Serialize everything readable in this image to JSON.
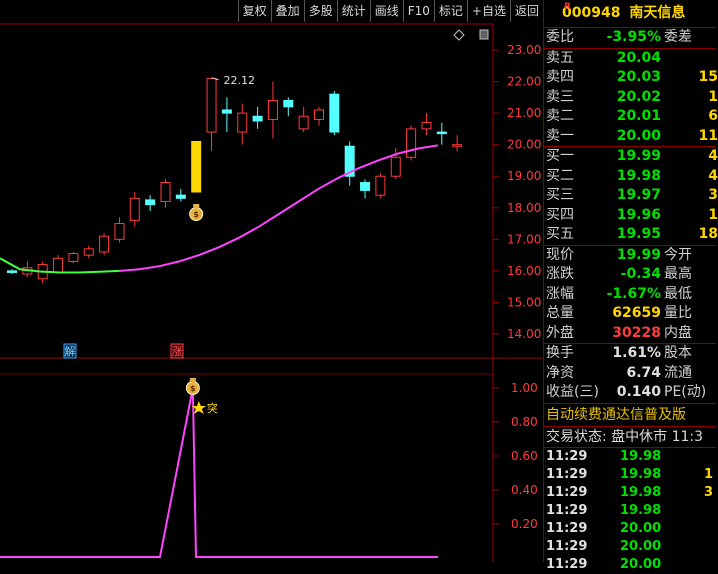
{
  "toolbar": [
    "复权",
    "叠加",
    "多股",
    "统计",
    "画线",
    "F10",
    "标记",
    "+自选",
    "返回"
  ],
  "main_chart": {
    "y_labels": [
      "23.00",
      "22.00",
      "21.00",
      "20.00",
      "19.00",
      "18.00",
      "17.00",
      "16.00",
      "15.00",
      "14.00"
    ],
    "high_annotation": "22.12",
    "markers": [
      "解",
      "涨"
    ],
    "candles": [
      {
        "o": 16.0,
        "c": 15.95,
        "h": 16.05,
        "l": 15.9
      },
      {
        "o": 15.9,
        "c": 16.1,
        "h": 16.3,
        "l": 15.8
      },
      {
        "o": 15.75,
        "c": 16.2,
        "h": 16.3,
        "l": 15.6
      },
      {
        "o": 15.95,
        "c": 16.4,
        "h": 16.5,
        "l": 15.9
      },
      {
        "o": 16.3,
        "c": 16.55,
        "h": 16.6,
        "l": 16.25
      },
      {
        "o": 16.5,
        "c": 16.7,
        "h": 16.8,
        "l": 16.4
      },
      {
        "o": 16.6,
        "c": 17.1,
        "h": 17.2,
        "l": 16.5
      },
      {
        "o": 17.0,
        "c": 17.5,
        "h": 17.7,
        "l": 16.9
      },
      {
        "o": 17.6,
        "c": 18.3,
        "h": 18.5,
        "l": 17.4
      },
      {
        "o": 18.25,
        "c": 18.1,
        "h": 18.4,
        "l": 17.9
      },
      {
        "o": 18.2,
        "c": 18.8,
        "h": 18.9,
        "l": 18.0
      },
      {
        "o": 18.4,
        "c": 18.3,
        "h": 18.6,
        "l": 18.2
      },
      {
        "o": 18.5,
        "c": 20.1,
        "h": 20.1,
        "l": 18.5
      },
      {
        "o": 20.4,
        "c": 22.1,
        "h": 22.12,
        "l": 19.8
      },
      {
        "o": 21.1,
        "c": 21.0,
        "h": 21.5,
        "l": 20.4
      },
      {
        "o": 20.4,
        "c": 21.0,
        "h": 21.3,
        "l": 20.0
      },
      {
        "o": 20.9,
        "c": 20.75,
        "h": 21.2,
        "l": 20.5
      },
      {
        "o": 20.8,
        "c": 21.4,
        "h": 22.0,
        "l": 20.2
      },
      {
        "o": 21.4,
        "c": 21.2,
        "h": 21.5,
        "l": 20.9
      },
      {
        "o": 20.5,
        "c": 20.9,
        "h": 21.2,
        "l": 20.4
      },
      {
        "o": 20.8,
        "c": 21.1,
        "h": 21.2,
        "l": 20.6
      },
      {
        "o": 21.6,
        "c": 20.4,
        "h": 21.7,
        "l": 20.3
      },
      {
        "o": 19.95,
        "c": 19.0,
        "h": 20.1,
        "l": 18.7
      },
      {
        "o": 18.8,
        "c": 18.55,
        "h": 18.9,
        "l": 18.3
      },
      {
        "o": 18.4,
        "c": 19.0,
        "h": 19.1,
        "l": 18.3
      },
      {
        "o": 19.0,
        "c": 19.6,
        "h": 19.9,
        "l": 18.9
      },
      {
        "o": 19.6,
        "c": 20.5,
        "h": 20.6,
        "l": 19.5
      },
      {
        "o": 20.5,
        "c": 20.7,
        "h": 21.0,
        "l": 20.3
      },
      {
        "o": 20.4,
        "c": 20.35,
        "h": 20.7,
        "l": 20.0
      },
      {
        "o": 19.95,
        "c": 20.0,
        "h": 20.3,
        "l": 19.8
      }
    ],
    "ma_curve": [
      16.4,
      16.05,
      15.98,
      15.95,
      15.95,
      15.97,
      16.0,
      16.05,
      16.15,
      16.3,
      16.5,
      16.75,
      17.05,
      17.4,
      17.8,
      18.2,
      18.6,
      18.95,
      19.25,
      19.5,
      19.72,
      19.88,
      19.98
    ]
  },
  "indicator": {
    "y_labels": [
      "1.00",
      "0.80",
      "0.60",
      "0.40",
      "0.20"
    ],
    "signal_label": "突"
  },
  "sidebar": {
    "code": "000948",
    "name": "南天信息",
    "r_mark": "R",
    "weibi": {
      "label": "委比",
      "value": "-3.95%",
      "label2": "委差"
    },
    "asks": [
      {
        "label": "卖五",
        "price": "20.04",
        "vol": ""
      },
      {
        "label": "卖四",
        "price": "20.03",
        "vol": "15"
      },
      {
        "label": "卖三",
        "price": "20.02",
        "vol": "1"
      },
      {
        "label": "卖二",
        "price": "20.01",
        "vol": "6"
      },
      {
        "label": "卖一",
        "price": "20.00",
        "vol": "11"
      }
    ],
    "bids": [
      {
        "label": "买一",
        "price": "19.99",
        "vol": "4"
      },
      {
        "label": "买二",
        "price": "19.98",
        "vol": "4"
      },
      {
        "label": "买三",
        "price": "19.97",
        "vol": "3"
      },
      {
        "label": "买四",
        "price": "19.96",
        "vol": "1"
      },
      {
        "label": "买五",
        "price": "19.95",
        "vol": "18"
      }
    ],
    "quote": [
      {
        "label": "现价",
        "value": "19.99",
        "label2": "今开"
      },
      {
        "label": "涨跌",
        "value": "-0.34",
        "label2": "最高"
      },
      {
        "label": "涨幅",
        "value": "-1.67%",
        "label2": "最低"
      },
      {
        "label": "总量",
        "value": "62659",
        "label2": "量比"
      },
      {
        "label": "外盘",
        "value": "30228",
        "label2": "内盘"
      }
    ],
    "fundamentals": [
      {
        "label": "换手",
        "value": "1.61%",
        "label2": "股本"
      },
      {
        "label": "净资",
        "value": "6.74",
        "label2": "流通"
      },
      {
        "label": "收益(三)",
        "value": "0.140",
        "label2": "PE(动)"
      }
    ],
    "notice": "自动续费通达信普及版",
    "status": "交易状态: 盘中休市 11:3",
    "ticks": [
      {
        "time": "11:29",
        "price": "19.98",
        "vol": ""
      },
      {
        "time": "11:29",
        "price": "19.98",
        "vol": "1"
      },
      {
        "time": "11:29",
        "price": "19.98",
        "vol": "3"
      },
      {
        "time": "11:29",
        "price": "19.98",
        "vol": ""
      },
      {
        "time": "11:29",
        "price": "20.00",
        "vol": ""
      },
      {
        "time": "11:29",
        "price": "20.00",
        "vol": ""
      },
      {
        "time": "11:29",
        "price": "20.00",
        "vol": ""
      }
    ]
  },
  "colors": {
    "up": "#ff3b3b",
    "down": "#54ffff",
    "ma": "#ff44ff",
    "ma_start": "#40ff40",
    "axis": "#a00000",
    "grid": "#700000",
    "price": "#ff3b3b",
    "green": "#00e000",
    "yellow": "#ffd700"
  }
}
